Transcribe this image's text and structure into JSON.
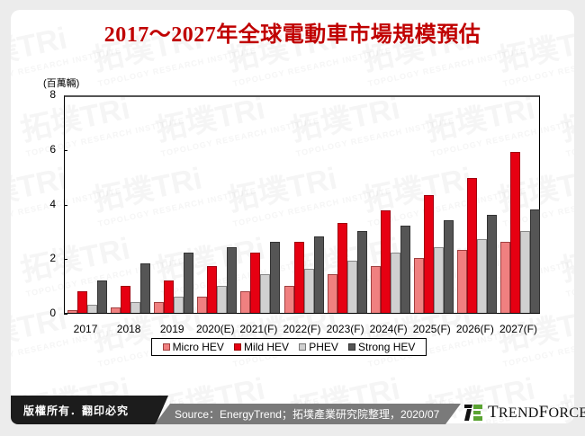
{
  "title": "2017～2027年全球電動車市場規模預估",
  "unit_label": "(百萬輛)",
  "watermark": {
    "cn": "拓墣TRi",
    "en": "TOPOLOGY RESEARCH INSTITUTE"
  },
  "colors": {
    "micro_hev": "#F08080",
    "mild_hev": "#E60012",
    "phev": "#D0D0D0",
    "strong_hev": "#555555",
    "title": "#C00000"
  },
  "chart_data": {
    "type": "bar",
    "title": "2017～2027年全球電動車市場規模預估",
    "xlabel": "",
    "ylabel": "(百萬輛)",
    "ylim": [
      0,
      8
    ],
    "yticks": [
      0,
      2,
      4,
      6,
      8
    ],
    "grid": false,
    "legend_position": "bottom",
    "categories": [
      "2017",
      "2018",
      "2019",
      "2020(E)",
      "2021(F)",
      "2022(F)",
      "2023(F)",
      "2024(F)",
      "2025(F)",
      "2026(F)",
      "2027(F)"
    ],
    "series": [
      {
        "name": "Micro HEV",
        "color": "#F08080",
        "values": [
          0.1,
          0.2,
          0.4,
          0.6,
          0.8,
          1.0,
          1.4,
          1.7,
          2.0,
          2.3,
          2.6
        ]
      },
      {
        "name": "Mild HEV",
        "color": "#E60012",
        "values": [
          0.8,
          1.0,
          1.2,
          1.7,
          2.2,
          2.6,
          3.3,
          3.75,
          4.3,
          4.95,
          5.9
        ]
      },
      {
        "name": "PHEV",
        "color": "#D0D0D0",
        "values": [
          0.3,
          0.4,
          0.6,
          1.0,
          1.4,
          1.6,
          1.9,
          2.2,
          2.4,
          2.7,
          3.0
        ]
      },
      {
        "name": "Strong HEV",
        "color": "#555555",
        "values": [
          1.2,
          1.8,
          2.2,
          2.4,
          2.6,
          2.8,
          3.0,
          3.2,
          3.4,
          3.6,
          3.8
        ]
      }
    ]
  },
  "legend": {
    "items": [
      {
        "label": "Micro HEV",
        "color": "#F08080"
      },
      {
        "label": "Mild HEV",
        "color": "#E60012"
      },
      {
        "label": "PHEV",
        "color": "#D0D0D0"
      },
      {
        "label": "Strong HEV",
        "color": "#555555"
      }
    ]
  },
  "footer": {
    "copyright": "版權所有．翻印必究",
    "source": "Source：EnergyTrend；拓墣產業研究院整理，2020/07",
    "brand": "TrendForce"
  }
}
